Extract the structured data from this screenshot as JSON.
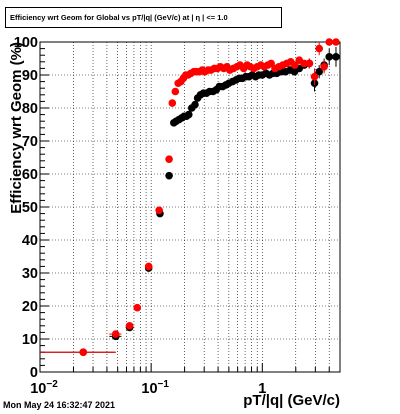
{
  "chart_data": {
    "type": "scatter",
    "title": "Efficiency wrt Geom for Global vs pT/|q| (GeV/c) at | η | <= 1.0",
    "xlabel": "pT/|q| (GeV/c)",
    "ylabel": "Efficiency wrt Geom (%)",
    "xscale": "log",
    "xlim": [
      0.01,
      5.0
    ],
    "ylim": [
      0,
      100
    ],
    "xtick_labels": [
      "10",
      "10",
      "1"
    ],
    "xtick_exponents": [
      "−2",
      "−1",
      ""
    ],
    "ytick_labels": [
      "0",
      "10",
      "20",
      "30",
      "40",
      "50",
      "60",
      "70",
      "80",
      "90",
      "100"
    ],
    "grid": true,
    "timestamp": "Mon May 24 16:32:47 2021",
    "series": [
      {
        "color": "#000000",
        "x": [
          0.0245,
          0.048,
          0.064,
          0.095,
          0.12,
          0.145,
          0.16,
          0.168,
          0.178,
          0.188,
          0.198,
          0.208,
          0.218,
          0.232,
          0.248,
          0.262,
          0.278,
          0.295,
          0.315,
          0.335,
          0.36,
          0.385,
          0.41,
          0.44,
          0.47,
          0.5,
          0.54,
          0.58,
          0.62,
          0.66,
          0.71,
          0.76,
          0.81,
          0.87,
          0.93,
          1.0,
          1.08,
          1.16,
          1.25,
          1.35,
          1.48,
          1.62,
          1.78,
          1.95,
          2.15,
          2.38,
          2.65,
          2.95,
          3.25,
          3.6,
          4.0,
          4.6
        ],
        "y": [
          6.0,
          10.8,
          13.5,
          31.5,
          48.0,
          59.5,
          75.5,
          76.0,
          76.5,
          77.0,
          77.5,
          77.5,
          78.0,
          80.0,
          81.0,
          83.0,
          84.0,
          84.5,
          84.5,
          85.0,
          85.0,
          85.5,
          86.5,
          86.5,
          87.0,
          87.5,
          88.0,
          88.5,
          89.0,
          89.0,
          89.5,
          89.5,
          90.0,
          89.5,
          90.0,
          90.0,
          90.5,
          90.0,
          90.5,
          90.5,
          91.0,
          91.0,
          91.5,
          91.0,
          92.0,
          93.0,
          93.5,
          87.5,
          91.0,
          93.0,
          95.5,
          95.5
        ],
        "yerr": [
          0.5,
          1.0,
          1.0,
          1.0,
          1.0,
          1.0,
          1.0,
          0.8,
          0.8,
          0.8,
          0.8,
          0.8,
          0.8,
          0.8,
          0.8,
          0.8,
          0.8,
          0.8,
          0.8,
          0.8,
          0.8,
          0.8,
          0.8,
          0.8,
          0.8,
          0.8,
          0.8,
          0.8,
          0.8,
          0.8,
          0.8,
          0.8,
          0.8,
          0.8,
          0.8,
          0.8,
          0.8,
          0.8,
          0.8,
          0.8,
          0.8,
          0.8,
          0.8,
          0.8,
          1.0,
          1.0,
          1.5,
          2.5,
          2.0,
          2.0,
          2.5,
          3.0
        ],
        "xerr_lo": [
          0.0145,
          0.006,
          0.005,
          0.007,
          0.008,
          0.006,
          0.004,
          0.004,
          0.004,
          0.004,
          0.004,
          0.004,
          0.004,
          0.004,
          0.004,
          0.004,
          0.004,
          0.004,
          0.004,
          0.004,
          0.004,
          0.004,
          0.004,
          0.004,
          0.004,
          0.004,
          0.004,
          0.004,
          0.004,
          0.004,
          0.004,
          0.004,
          0.004,
          0.004,
          0.004,
          0.004,
          0.004,
          0.004,
          0.004,
          0.004,
          0.004,
          0.004,
          0.004,
          0.004,
          0.004,
          0.004,
          0.004,
          0.004,
          0.004,
          0.004,
          0.004,
          0.004
        ],
        "xerr_hi": [
          0.0235,
          0.006,
          0.005,
          0.007,
          0.008,
          0.006,
          0.004,
          0.004,
          0.004,
          0.004,
          0.004,
          0.004,
          0.004,
          0.004,
          0.004,
          0.004,
          0.004,
          0.004,
          0.004,
          0.004,
          0.004,
          0.004,
          0.004,
          0.004,
          0.004,
          0.004,
          0.004,
          0.004,
          0.004,
          0.004,
          0.004,
          0.004,
          0.004,
          0.004,
          0.004,
          0.004,
          0.004,
          0.004,
          0.004,
          0.004,
          0.004,
          0.004,
          0.004,
          0.004,
          0.004,
          0.004,
          0.004,
          0.004,
          0.004,
          0.004,
          0.004,
          0.004
        ]
      },
      {
        "color": "#ff0000",
        "x": [
          0.0245,
          0.048,
          0.064,
          0.075,
          0.095,
          0.118,
          0.145,
          0.155,
          0.165,
          0.175,
          0.185,
          0.195,
          0.205,
          0.215,
          0.228,
          0.242,
          0.256,
          0.272,
          0.288,
          0.305,
          0.325,
          0.345,
          0.37,
          0.395,
          0.42,
          0.45,
          0.48,
          0.51,
          0.55,
          0.59,
          0.63,
          0.68,
          0.73,
          0.78,
          0.84,
          0.9,
          0.97,
          1.04,
          1.12,
          1.2,
          1.3,
          1.41,
          1.53,
          1.66,
          1.8,
          1.96,
          2.15,
          2.38,
          2.65,
          2.95,
          3.25,
          3.6,
          4.0,
          4.6
        ],
        "y": [
          6.0,
          11.5,
          14.0,
          19.5,
          32.0,
          49.0,
          64.5,
          81.5,
          85.0,
          87.5,
          88.0,
          89.0,
          90.0,
          90.0,
          90.5,
          91.0,
          91.0,
          91.0,
          91.5,
          91.0,
          91.5,
          91.5,
          92.0,
          92.0,
          92.5,
          92.0,
          92.5,
          91.5,
          92.0,
          92.5,
          93.0,
          92.0,
          93.0,
          92.5,
          92.0,
          92.5,
          93.0,
          92.5,
          93.0,
          93.5,
          92.0,
          92.5,
          93.0,
          93.5,
          94.0,
          93.0,
          94.5,
          93.5,
          93.5,
          89.5,
          98.0,
          92.5,
          100.0,
          100.0
        ],
        "yerr": [
          0.5,
          1.0,
          1.0,
          1.0,
          1.0,
          1.0,
          1.0,
          0.8,
          0.8,
          0.8,
          0.8,
          0.8,
          0.8,
          0.8,
          0.8,
          0.8,
          0.8,
          0.8,
          0.8,
          0.8,
          0.8,
          0.8,
          0.8,
          0.8,
          0.8,
          0.8,
          0.8,
          0.8,
          0.8,
          0.8,
          0.8,
          0.8,
          0.8,
          0.8,
          0.8,
          0.8,
          0.8,
          0.8,
          0.8,
          0.8,
          0.8,
          0.8,
          0.8,
          0.8,
          0.8,
          0.8,
          1.0,
          1.0,
          1.5,
          2.5,
          2.0,
          2.0,
          0.5,
          0.5
        ],
        "xerr_lo": [
          0.0145,
          0.006,
          0.005,
          0.005,
          0.007,
          0.008,
          0.006,
          0.004,
          0.004,
          0.004,
          0.004,
          0.004,
          0.004,
          0.004,
          0.004,
          0.004,
          0.004,
          0.004,
          0.004,
          0.004,
          0.004,
          0.004,
          0.004,
          0.004,
          0.004,
          0.004,
          0.004,
          0.004,
          0.004,
          0.004,
          0.004,
          0.004,
          0.004,
          0.004,
          0.004,
          0.004,
          0.004,
          0.004,
          0.004,
          0.004,
          0.004,
          0.004,
          0.004,
          0.004,
          0.004,
          0.004,
          0.004,
          0.004,
          0.004,
          0.004,
          0.004,
          0.004,
          0.004,
          0.004
        ],
        "xerr_hi": [
          0.0235,
          0.006,
          0.005,
          0.005,
          0.007,
          0.008,
          0.006,
          0.004,
          0.004,
          0.004,
          0.004,
          0.004,
          0.004,
          0.004,
          0.004,
          0.004,
          0.004,
          0.004,
          0.004,
          0.004,
          0.004,
          0.004,
          0.004,
          0.004,
          0.004,
          0.004,
          0.004,
          0.004,
          0.004,
          0.004,
          0.004,
          0.004,
          0.004,
          0.004,
          0.004,
          0.004,
          0.004,
          0.004,
          0.004,
          0.004,
          0.004,
          0.004,
          0.004,
          0.004,
          0.004,
          0.004,
          0.004,
          0.004,
          0.004,
          0.004,
          0.004,
          0.004,
          0.004,
          0.004
        ]
      }
    ]
  }
}
